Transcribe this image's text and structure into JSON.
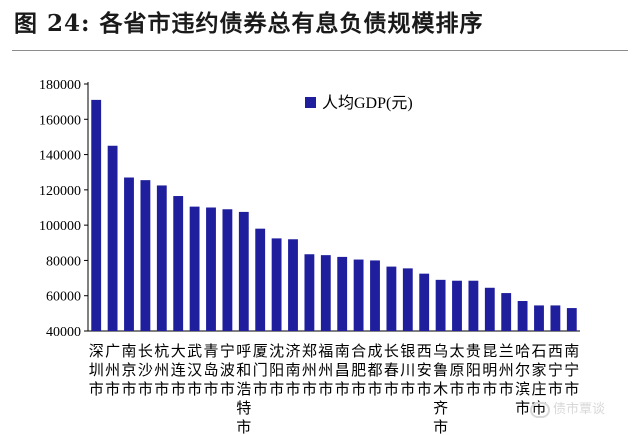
{
  "figure": {
    "title": "图 24:  各省市违约债券总有息负债规模排序"
  },
  "watermark": {
    "text": "债市覃谈",
    "icon": "wechat-icon"
  },
  "chart_data": {
    "type": "bar",
    "title": "",
    "xlabel": "",
    "ylabel": "",
    "ylim": [
      40000,
      180000
    ],
    "yticks": [
      40000,
      60000,
      80000,
      100000,
      120000,
      140000,
      160000,
      180000
    ],
    "grid": false,
    "legend": "top-center",
    "bar_color": "#1f1f9e",
    "categories": [
      "深圳市",
      "广州市",
      "南京市",
      "长沙市",
      "杭州市",
      "大连市",
      "武汉市",
      "青岛市",
      "宁波市",
      "呼和浩特市",
      "厦门市",
      "沈阳市",
      "济南市",
      "郑州市",
      "福州市",
      "南昌市",
      "合肥市",
      "成都市",
      "长春市",
      "银川市",
      "西安市",
      "乌鲁木齐市",
      "太原市",
      "贵阳市",
      "昆明市",
      "兰州市",
      "哈尔滨市",
      "石家庄市",
      "西宁市",
      "南宁市"
    ],
    "series": [
      {
        "name": "人均GDP(元)",
        "values": [
          171000,
          145000,
          127000,
          125500,
          122500,
          116500,
          110500,
          110000,
          109000,
          107500,
          98000,
          92500,
          92000,
          83500,
          83000,
          82000,
          80500,
          80000,
          76500,
          75500,
          72500,
          69000,
          68500,
          68500,
          64500,
          61500,
          57000,
          54500,
          54500,
          53000
        ]
      }
    ]
  }
}
